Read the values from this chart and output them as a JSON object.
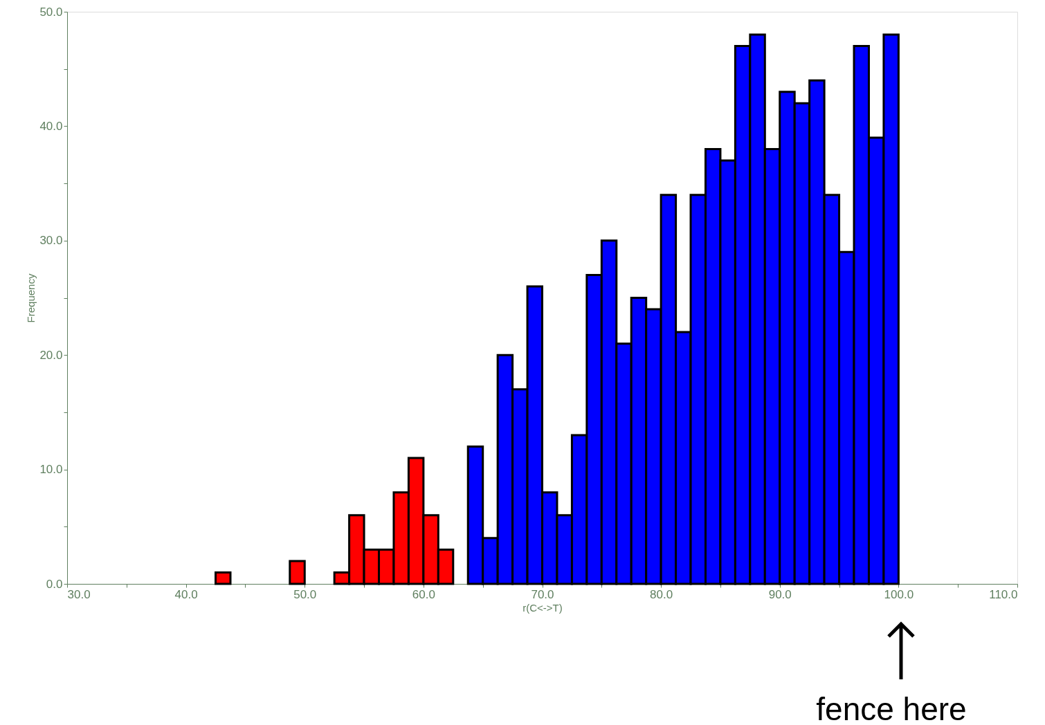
{
  "chart_data": {
    "type": "histogram",
    "xlabel": "r(C<->T)",
    "ylabel": "Frequency",
    "bins": [
      42.5,
      43.75,
      45,
      46.25,
      47.5,
      48.75,
      50,
      51.25,
      52.5,
      53.75,
      55,
      56.25,
      57.5,
      58.75,
      60,
      61.25,
      62.5,
      63.75,
      65,
      66.25,
      67.5,
      68.75,
      70,
      71.25,
      72.5,
      73.75,
      75,
      76.25,
      77.5,
      78.75,
      80,
      81.25,
      82.5,
      83.75,
      85,
      86.25,
      87.5,
      88.75,
      90,
      91.25,
      92.5,
      93.75,
      95,
      96.25,
      97.5,
      98.75,
      100
    ],
    "values": [
      1,
      0,
      0,
      0,
      0,
      2,
      0,
      0,
      1,
      6,
      3,
      3,
      8,
      11,
      6,
      3,
      0,
      12,
      4,
      20,
      17,
      26,
      8,
      6,
      13,
      27,
      30,
      21,
      25,
      24,
      34,
      22,
      34,
      38,
      37,
      47,
      48,
      38,
      43,
      42,
      44,
      34,
      29,
      47,
      39,
      48
    ],
    "colors": [
      "#ff0000",
      "#ff0000",
      "#ff0000",
      "#ff0000",
      "#ff0000",
      "#ff0000",
      "#ff0000",
      "#ff0000",
      "#ff0000",
      "#ff0000",
      "#ff0000",
      "#ff0000",
      "#ff0000",
      "#ff0000",
      "#ff0000",
      "#ff0000",
      "#ff0000",
      "#0000ff",
      "#0000ff",
      "#0000ff",
      "#0000ff",
      "#0000ff",
      "#0000ff",
      "#0000ff",
      "#0000ff",
      "#0000ff",
      "#0000ff",
      "#0000ff",
      "#0000ff",
      "#0000ff",
      "#0000ff",
      "#0000ff",
      "#0000ff",
      "#0000ff",
      "#0000ff",
      "#0000ff",
      "#0000ff",
      "#0000ff",
      "#0000ff",
      "#0000ff",
      "#0000ff",
      "#0000ff",
      "#0000ff",
      "#0000ff",
      "#0000ff",
      "#0000ff"
    ],
    "xlim": [
      30,
      110
    ],
    "ylim": [
      0,
      50
    ],
    "xticks": [
      {
        "value": 30,
        "label": "30.0"
      },
      {
        "value": 35,
        "label": null
      },
      {
        "value": 40,
        "label": "40.0"
      },
      {
        "value": 45,
        "label": null
      },
      {
        "value": 50,
        "label": "50.0"
      },
      {
        "value": 55,
        "label": null
      },
      {
        "value": 60,
        "label": "60.0"
      },
      {
        "value": 65,
        "label": null
      },
      {
        "value": 70,
        "label": "70.0"
      },
      {
        "value": 75,
        "label": null
      },
      {
        "value": 80,
        "label": "80.0"
      },
      {
        "value": 85,
        "label": null
      },
      {
        "value": 90,
        "label": "90.0"
      },
      {
        "value": 95,
        "label": null
      },
      {
        "value": 100,
        "label": "100.0"
      },
      {
        "value": 105,
        "label": null
      },
      {
        "value": 110,
        "label": "110.0"
      }
    ],
    "yticks": [
      {
        "value": 0,
        "label": "0.0"
      },
      {
        "value": 5,
        "label": null
      },
      {
        "value": 10,
        "label": "10.0"
      },
      {
        "value": 15,
        "label": null
      },
      {
        "value": 20,
        "label": "20.0"
      },
      {
        "value": 25,
        "label": null
      },
      {
        "value": 30,
        "label": "30.0"
      },
      {
        "value": 35,
        "label": null
      },
      {
        "value": 40,
        "label": "40.0"
      },
      {
        "value": 45,
        "label": null
      },
      {
        "value": 50,
        "label": "50.0"
      }
    ],
    "grid": false,
    "annotations": [
      "fence here"
    ]
  }
}
